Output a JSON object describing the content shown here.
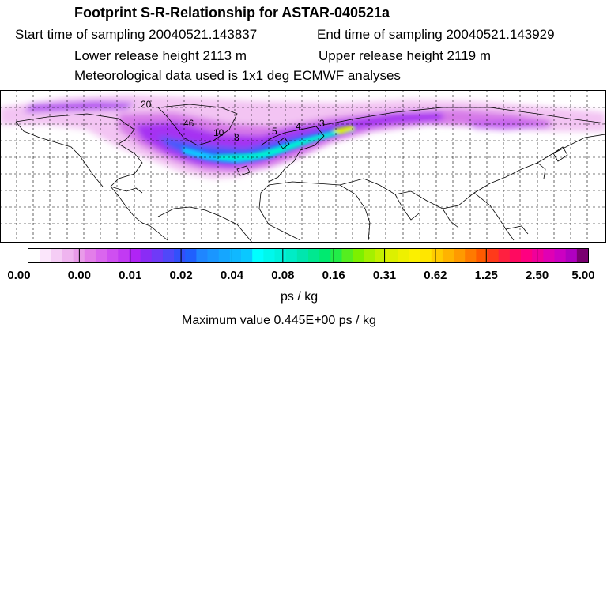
{
  "header": {
    "title": "Footprint S-R-Relationship for ASTAR-040521a",
    "start_time": "Start time of sampling 20040521.143837",
    "end_time": "End time of sampling 20040521.143929",
    "lower_height": "Lower release height 2113 m",
    "upper_height": "Upper release height 2119 m",
    "met_data": "Meteorological data used is 1x1 deg ECMWF analyses"
  },
  "map": {
    "projection": "lat-lon",
    "lon_range": [
      -180,
      180
    ],
    "lat_range": [
      0,
      90
    ],
    "grid": "dashed",
    "contour_labels": [
      "20",
      "46",
      "10",
      "8",
      "5",
      "4",
      "3"
    ]
  },
  "colorbar": {
    "tick_labels": [
      "0.00",
      "0.00",
      "0.01",
      "0.02",
      "0.04",
      "0.08",
      "0.16",
      "0.31",
      "0.62",
      "1.25",
      "2.50",
      "5.00"
    ],
    "colors": [
      "#ffffff",
      "#fbe6fb",
      "#f5cdf5",
      "#efb4ef",
      "#e99be9",
      "#e37ee9",
      "#da66ee",
      "#cf4ff1",
      "#c23af3",
      "#b024f5",
      "#8a2cf5",
      "#6f3af7",
      "#5048f9",
      "#3250fb",
      "#2060fd",
      "#1f86ff",
      "#1a96ff",
      "#15a6ff",
      "#10b8ff",
      "#0ac8ff",
      "#00ffff",
      "#00f8ec",
      "#00f2dc",
      "#00ecc6",
      "#00e6ae",
      "#00e890",
      "#00ea70",
      "#22ec48",
      "#55ee20",
      "#7df000",
      "#a4f000",
      "#c4f000",
      "#dcf000",
      "#eef000",
      "#fbf000",
      "#ffe600",
      "#ffcc00",
      "#ffb300",
      "#ff9a00",
      "#ff7a00",
      "#ff5a00",
      "#ff3a1a",
      "#ff2040",
      "#ff0a60",
      "#ff0080",
      "#f0009a",
      "#e000b4",
      "#cc00c2",
      "#b000c0",
      "#7a0070"
    ],
    "units": "ps / kg",
    "max_text": "Maximum value  0.445E+00 ps / kg"
  }
}
